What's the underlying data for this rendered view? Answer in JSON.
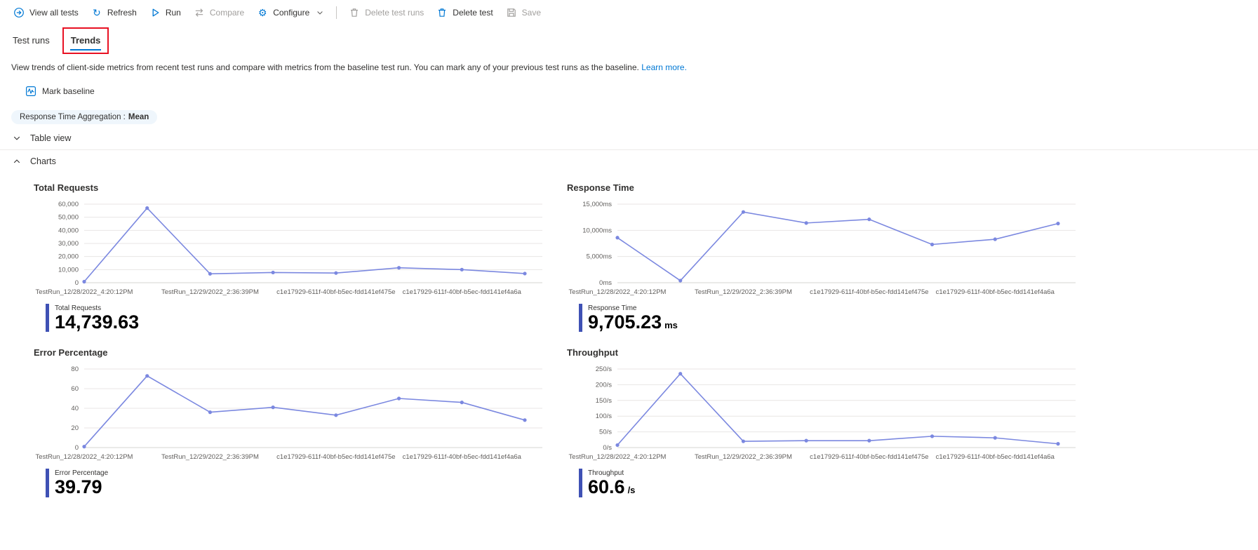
{
  "toolbar": {
    "view_all_tests": "View all tests",
    "refresh": "Refresh",
    "run": "Run",
    "compare": "Compare",
    "configure": "Configure",
    "delete_test_runs": "Delete test runs",
    "delete_test": "Delete test",
    "save": "Save"
  },
  "tabs": {
    "test_runs": "Test runs",
    "trends": "Trends"
  },
  "description": {
    "text": "View trends of client-side metrics from recent test runs and compare with metrics from the baseline test run. You can mark any of your previous test runs as the baseline.",
    "learn_more": "Learn more."
  },
  "mark_baseline_label": "Mark baseline",
  "filter_chip": {
    "label": "Response Time Aggregation :",
    "value": "Mean"
  },
  "sections": {
    "table_view": "Table view",
    "charts": "Charts"
  },
  "colors": {
    "accent": "#0078d4",
    "chart_line": "#7b88e0",
    "stat_bar": "#3f51b5",
    "gridline": "#e8e6e4",
    "baseline_gridline": "#d6d4d2",
    "axis_text": "#605e5c",
    "annotation_red": "#e81123"
  },
  "chart_data": [
    {
      "type": "line",
      "title": "Total Requests",
      "ylabel": "",
      "xlabel": "",
      "ylim": [
        0,
        60000
      ],
      "y_ticks": [
        "60,000",
        "50,000",
        "40,000",
        "30,000",
        "20,000",
        "10,000",
        "0"
      ],
      "x_labels": [
        "TestRun_12/28/2022_4:20:12PM",
        "TestRun_12/29/2022_2:36:39PM",
        "c1e17929-611f-40bf-b5ec-fdd141ef475e",
        "c1e17929-611f-40bf-b5ec-fdd141ef4a6a"
      ],
      "x_label_point_indices": [
        0,
        2,
        4,
        6
      ],
      "values": [
        800,
        57000,
        6800,
        7800,
        7400,
        11400,
        10000,
        7000
      ],
      "grid": true,
      "legend": "none",
      "stat_label": "Total Requests",
      "stat_value": "14,739.63",
      "stat_unit": ""
    },
    {
      "type": "line",
      "title": "Response Time",
      "ylabel": "",
      "xlabel": "",
      "ylim": [
        0,
        15000
      ],
      "y_ticks": [
        "15,000ms",
        "10,000ms",
        "5,000ms",
        "0ms"
      ],
      "x_labels": [
        "TestRun_12/28/2022_4:20:12PM",
        "TestRun_12/29/2022_2:36:39PM",
        "c1e17929-611f-40bf-b5ec-fdd141ef475e",
        "c1e17929-611f-40bf-b5ec-fdd141ef4a6a"
      ],
      "x_label_point_indices": [
        0,
        2,
        4,
        6
      ],
      "values": [
        8600,
        400,
        13500,
        11400,
        12100,
        7300,
        8300,
        11300
      ],
      "grid": true,
      "legend": "none",
      "stat_label": "Response Time",
      "stat_value": "9,705.23",
      "stat_unit": "ms"
    },
    {
      "type": "line",
      "title": "Error Percentage",
      "ylabel": "",
      "xlabel": "",
      "ylim": [
        0,
        80
      ],
      "y_ticks": [
        "80",
        "60",
        "40",
        "20",
        "0"
      ],
      "x_labels": [
        "TestRun_12/28/2022_4:20:12PM",
        "TestRun_12/29/2022_2:36:39PM",
        "c1e17929-611f-40bf-b5ec-fdd141ef475e",
        "c1e17929-611f-40bf-b5ec-fdd141ef4a6a"
      ],
      "x_label_point_indices": [
        0,
        2,
        4,
        6
      ],
      "values": [
        1,
        73,
        36,
        41,
        33,
        50,
        46,
        28
      ],
      "grid": true,
      "legend": "none",
      "stat_label": "Error Percentage",
      "stat_value": "39.79",
      "stat_unit": ""
    },
    {
      "type": "line",
      "title": "Throughput",
      "ylabel": "",
      "xlabel": "",
      "ylim": [
        0,
        250
      ],
      "y_ticks": [
        "250/s",
        "200/s",
        "150/s",
        "100/s",
        "50/s",
        "0/s"
      ],
      "x_labels": [
        "TestRun_12/28/2022_4:20:12PM",
        "TestRun_12/29/2022_2:36:39PM",
        "c1e17929-611f-40bf-b5ec-fdd141ef475e",
        "c1e17929-611f-40bf-b5ec-fdd141ef4a6a"
      ],
      "x_label_point_indices": [
        0,
        2,
        4,
        6
      ],
      "values": [
        8,
        235,
        20,
        22,
        22,
        36,
        31,
        12
      ],
      "grid": true,
      "legend": "none",
      "stat_label": "Throughput",
      "stat_value": "60.6",
      "stat_unit": "/s"
    }
  ]
}
